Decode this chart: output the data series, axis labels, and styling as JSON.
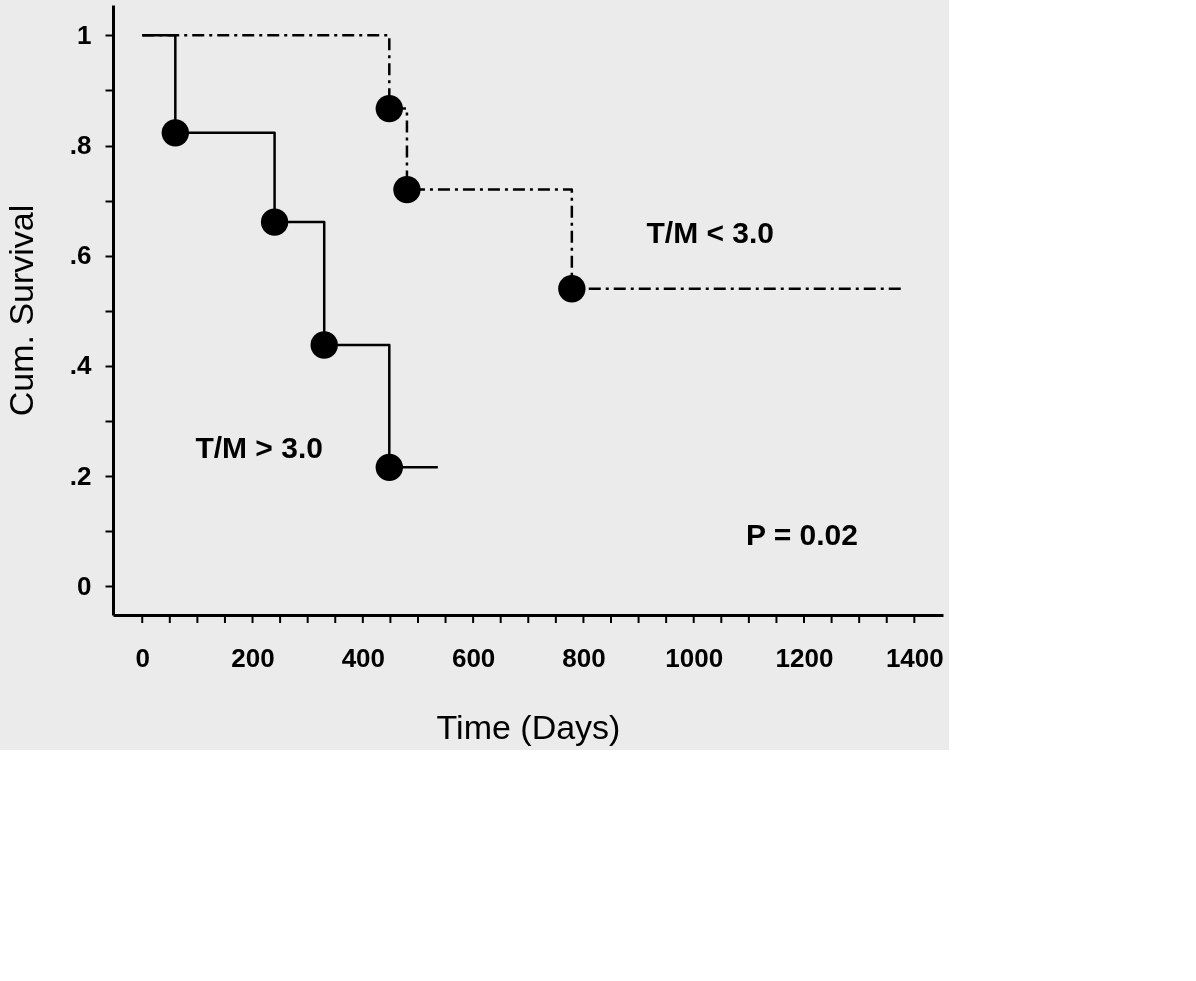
{
  "chart_data": {
    "type": "step",
    "xlabel": "Time (Days)",
    "ylabel": "Cum. Survival",
    "xlim": [
      -53,
      1452
    ],
    "ylim": [
      -0.052,
      1.055
    ],
    "xticks": [
      0,
      {
        "value": 50,
        "label": null
      },
      {
        "value": 100,
        "label": null
      },
      {
        "value": 150,
        "label": null
      },
      200,
      {
        "value": 250,
        "label": null
      },
      {
        "value": 300,
        "label": null
      },
      {
        "value": 350,
        "label": null
      },
      400,
      {
        "value": 450,
        "label": null
      },
      {
        "value": 500,
        "label": null
      },
      {
        "value": 550,
        "label": null
      },
      600,
      {
        "value": 650,
        "label": null
      },
      {
        "value": 700,
        "label": null
      },
      {
        "value": 750,
        "label": null
      },
      800,
      {
        "value": 850,
        "label": null
      },
      {
        "value": 900,
        "label": null
      },
      {
        "value": 950,
        "label": null
      },
      1000,
      {
        "value": 1050,
        "label": null
      },
      {
        "value": 1100,
        "label": null
      },
      {
        "value": 1150,
        "label": null
      },
      1200,
      {
        "value": 1250,
        "label": null
      },
      {
        "value": 1300,
        "label": null
      },
      {
        "value": 1350,
        "label": null
      },
      1400
    ],
    "yticks": [
      0,
      {
        "value": 0.1,
        "label": null
      },
      {
        "value": 0.2,
        "label": ".2"
      },
      {
        "value": 0.3,
        "label": null
      },
      {
        "value": 0.4,
        "label": ".4"
      },
      {
        "value": 0.5,
        "label": null
      },
      {
        "value": 0.6,
        "label": ".6"
      },
      {
        "value": 0.7,
        "label": null
      },
      {
        "value": 0.8,
        "label": ".8"
      },
      {
        "value": 0.9,
        "label": null
      },
      1
    ],
    "grid": false,
    "legend": false,
    "series": [
      {
        "name": "T/M > 3.0",
        "color": "#000000",
        "line_style": "solid",
        "x": [
          0,
          60,
          240,
          330,
          448,
          536
        ],
        "values": [
          1,
          0.823,
          0.661,
          0.438,
          0.216,
          0.216
        ]
      },
      {
        "type": "scatter",
        "color": "#000000",
        "marker": "circle",
        "x": [
          60,
          240,
          330,
          448
        ],
        "values": [
          0.823,
          0.661,
          0.438,
          0.216
        ]
      },
      {
        "name": "T/M < 3.0",
        "color": "#000000",
        "line_style": "dashed",
        "x": [
          0,
          448,
          480,
          779,
          1378
        ],
        "values": [
          1,
          0.867,
          0.72,
          0.54,
          0.54
        ]
      },
      {
        "type": "scatter",
        "color": "#000000",
        "marker": "circle",
        "x": [
          448,
          480,
          779
        ],
        "values": [
          0.867,
          0.72,
          0.54
        ]
      }
    ],
    "annotations": [
      "P = 0.02"
    ]
  }
}
